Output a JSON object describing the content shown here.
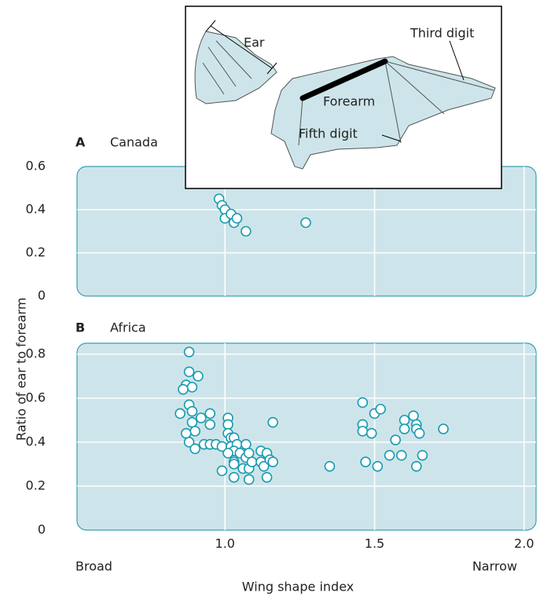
{
  "chart_data": [
    {
      "type": "scatter",
      "panel": "A",
      "title": "Canada",
      "color": "#1a9bb0",
      "x": [
        0.98,
        0.99,
        1.0,
        1.0,
        1.02,
        1.03,
        1.04,
        1.07,
        1.27
      ],
      "y": [
        0.45,
        0.42,
        0.4,
        0.36,
        0.38,
        0.34,
        0.36,
        0.3,
        0.34
      ],
      "xlim": [
        0.5,
        2.04
      ],
      "ylim": [
        0,
        0.6
      ],
      "xticks": [
        1,
        1.5,
        2
      ],
      "yticks": [
        0,
        0.2,
        0.4,
        0.6
      ],
      "grid": true
    },
    {
      "type": "scatter",
      "panel": "B",
      "title": "Africa",
      "color": "#1a9bb0",
      "x": [
        0.88,
        0.88,
        0.91,
        0.87,
        0.89,
        0.86,
        0.88,
        0.89,
        0.85,
        0.92,
        0.95,
        0.89,
        0.9,
        0.87,
        0.95,
        0.88,
        0.9,
        0.93,
        0.95,
        0.97,
        0.99,
        1.01,
        1.01,
        1.01,
        1.02,
        1.03,
        1.02,
        1.04,
        1.03,
        1.01,
        1.05,
        1.03,
        1.07,
        1.07,
        1.08,
        0.99,
        1.03,
        1.06,
        1.08,
        1.09,
        1.12,
        1.12,
        1.13,
        1.14,
        1.15,
        1.16,
        1.14,
        1.03,
        1.08,
        1.16,
        1.35,
        1.46,
        1.46,
        1.46,
        1.49,
        1.5,
        1.52,
        1.47,
        1.51,
        1.55,
        1.57,
        1.59,
        1.6,
        1.6,
        1.63,
        1.64,
        1.64,
        1.65,
        1.64,
        1.66,
        1.73
      ],
      "y": [
        0.81,
        0.72,
        0.7,
        0.66,
        0.65,
        0.64,
        0.57,
        0.54,
        0.53,
        0.51,
        0.53,
        0.49,
        0.45,
        0.44,
        0.48,
        0.4,
        0.37,
        0.39,
        0.39,
        0.39,
        0.38,
        0.51,
        0.48,
        0.44,
        0.42,
        0.42,
        0.38,
        0.39,
        0.36,
        0.35,
        0.35,
        0.31,
        0.33,
        0.39,
        0.35,
        0.27,
        0.3,
        0.28,
        0.28,
        0.31,
        0.36,
        0.31,
        0.29,
        0.35,
        0.32,
        0.31,
        0.24,
        0.24,
        0.23,
        0.49,
        0.29,
        0.58,
        0.48,
        0.45,
        0.44,
        0.53,
        0.55,
        0.31,
        0.29,
        0.34,
        0.41,
        0.34,
        0.5,
        0.46,
        0.52,
        0.48,
        0.46,
        0.44,
        0.29,
        0.34,
        0.46
      ],
      "xlim": [
        0.5,
        2.04
      ],
      "ylim": [
        0,
        0.85
      ],
      "xticks": [
        {
          "value": 1,
          "label": "1.0"
        },
        {
          "value": 1.5,
          "label": "1.5"
        },
        {
          "value": 2,
          "label": "2.0"
        }
      ],
      "yticks": [
        0,
        0.2,
        0.4,
        0.6,
        0.8
      ],
      "grid": true
    }
  ],
  "x_label": "Wing shape index",
  "x_end_labels": [
    "Broad",
    "Narrow"
  ],
  "y_label": "Ratio of ear to forearm",
  "inset": {
    "labels": [
      "Ear",
      "Forearm",
      "Third digit",
      "Fifth digit"
    ]
  }
}
